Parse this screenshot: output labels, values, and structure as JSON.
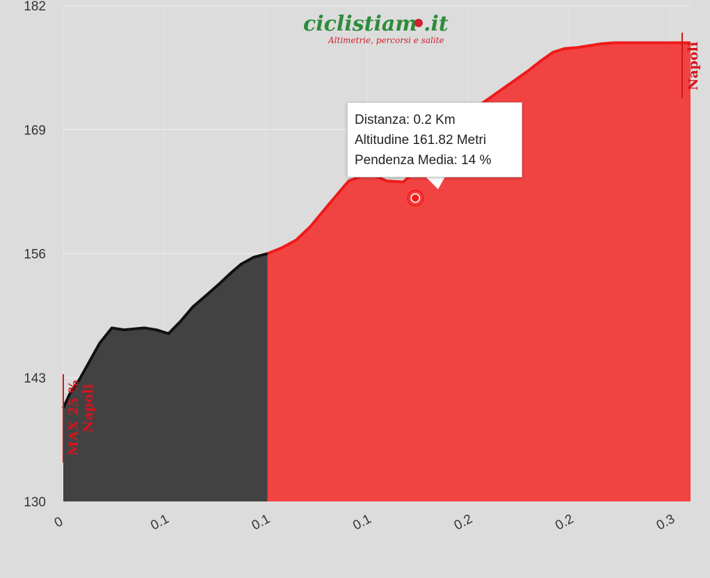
{
  "chart_data": {
    "type": "area",
    "yticks": [
      130,
      143,
      156,
      169,
      182
    ],
    "ylim": [
      130,
      182
    ],
    "xtick_labels": [
      "0",
      "0.1",
      "0.1",
      "0.1",
      "0.2",
      "0.2",
      "0.3"
    ],
    "xlim": [
      0,
      0.31
    ],
    "x": [
      0,
      0.003,
      0.008,
      0.013,
      0.018,
      0.024,
      0.03,
      0.035,
      0.04,
      0.046,
      0.052,
      0.058,
      0.064,
      0.07,
      0.077,
      0.083,
      0.088,
      0.094,
      0.101,
      0.108,
      0.115,
      0.122,
      0.131,
      0.141,
      0.151,
      0.16,
      0.168,
      0.175,
      0.182,
      0.188,
      0.194,
      0.2,
      0.206,
      0.212,
      0.218,
      0.224,
      0.23,
      0.236,
      0.242,
      0.248,
      0.254,
      0.26,
      0.266,
      0.272,
      0.278,
      0.284,
      0.29,
      0.296,
      0.3,
      0.31
    ],
    "y": [
      139.8,
      141.2,
      142.8,
      144.7,
      146.6,
      148.2,
      148.0,
      148.1,
      148.2,
      148.0,
      147.6,
      148.9,
      150.4,
      151.5,
      152.8,
      154.0,
      154.9,
      155.6,
      156.0,
      156.6,
      157.4,
      158.8,
      161.1,
      163.6,
      164.4,
      163.6,
      163.5,
      164.8,
      166.2,
      167.7,
      169.1,
      170.4,
      171.6,
      172.5,
      173.4,
      174.3,
      175.2,
      176.2,
      177.1,
      177.5,
      177.6,
      177.8,
      178.0,
      178.1,
      178.1,
      178.1,
      178.1,
      178.1,
      178.1,
      178.1
    ],
    "highlight_range": [
      0,
      0.101
    ],
    "hovered_point": {
      "x": 0.174,
      "y": 161.82
    },
    "tooltip": {
      "line1": "Distanza: 0.2 Km",
      "line2": "Altitudine 161.82 Metri",
      "line3": "Pendenza Media: 14 %"
    },
    "markers": {
      "start": {
        "max": "MAX 25 %",
        "name": "Napoli"
      },
      "end": {
        "name": "Napoli"
      }
    },
    "colors": {
      "dark_fill": "#424242",
      "red_fill": "#f24343",
      "red_line": "#f01a1a",
      "dark_line": "#111111",
      "grid": "#e9e9e9",
      "marker": "#cc1a1a"
    }
  },
  "logo": {
    "main": "ciclistiam",
    "suffix": ".it",
    "tagline": "Altimetrie, percorsi e salite"
  }
}
